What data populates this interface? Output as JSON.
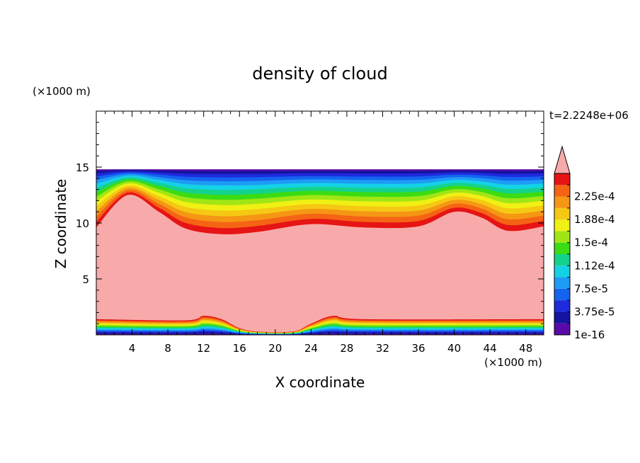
{
  "chart_data": {
    "type": "heatmap",
    "title": "density of cloud",
    "xlabel": "X coordinate",
    "ylabel": "Z coordinate",
    "x_unit": "(×1000 m)",
    "y_unit": "(×1000 m)",
    "time_label": "t=2.2248e+06",
    "xlim": [
      0,
      50
    ],
    "ylim": [
      0,
      20
    ],
    "x_ticks": [
      "4",
      "8",
      "12",
      "16",
      "20",
      "24",
      "28",
      "32",
      "36",
      "40",
      "44",
      "48"
    ],
    "y_ticks": [
      "5",
      "10",
      "15"
    ],
    "colorbar": {
      "labels": [
        "2.25e-4",
        "1.88e-4",
        "1.5e-4",
        "1.12e-4",
        "7.5e-5",
        "3.75e-5",
        "1e-16"
      ],
      "levels": [
        1e-16,
        1.875e-05,
        3.75e-05,
        5.625e-05,
        7.5e-05,
        9.375e-05,
        0.0001125,
        0.00013125,
        0.00015,
        0.00016875,
        0.0001875,
        0.00020625,
        0.000225,
        0.00024375
      ],
      "colors": [
        "#5a0aa8",
        "#1414a0",
        "#1e2adc",
        "#1464f0",
        "#1e9cf5",
        "#14d2e6",
        "#14d28c",
        "#3cdc14",
        "#a0e614",
        "#f0f014",
        "#f5c814",
        "#f59614",
        "#f56414",
        "#e61414"
      ],
      "overflow_color": "#f8aaaa"
    },
    "regions": {
      "cloud_top": 14.8,
      "dense_core_top": [
        [
          0,
          9.6
        ],
        [
          3.5,
          12.5
        ],
        [
          7,
          11
        ],
        [
          10,
          9.5
        ],
        [
          14,
          9.0
        ],
        [
          18,
          9.2
        ],
        [
          24,
          9.9
        ],
        [
          30,
          9.6
        ],
        [
          36,
          9.7
        ],
        [
          40,
          11.0
        ],
        [
          43,
          10.5
        ],
        [
          46,
          9.3
        ],
        [
          50,
          9.7
        ]
      ],
      "dense_core_bottom": [
        [
          0,
          1.4
        ],
        [
          10,
          1.3
        ],
        [
          12,
          1.7
        ],
        [
          14,
          1.4
        ],
        [
          16,
          0.6
        ],
        [
          18,
          0.3
        ],
        [
          22,
          0.3
        ],
        [
          24,
          1.0
        ],
        [
          26.5,
          1.7
        ],
        [
          30,
          1.4
        ],
        [
          50,
          1.4
        ]
      ]
    }
  }
}
